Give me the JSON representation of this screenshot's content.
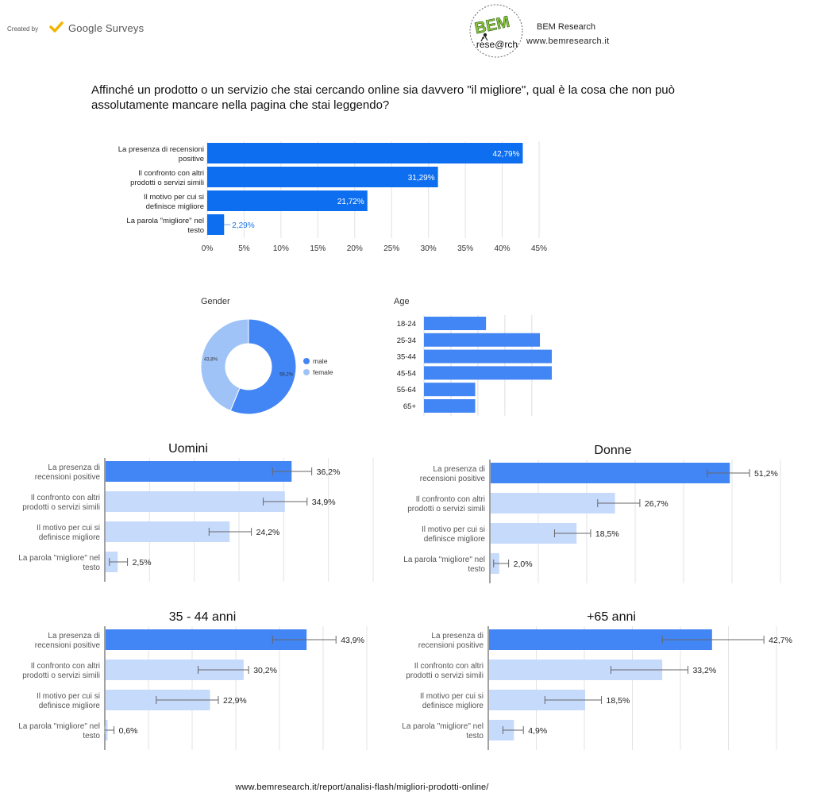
{
  "header": {
    "created_by": "Created by",
    "brand": "Google Surveys",
    "logo_text_top": "BEM",
    "logo_text_bottom": "rese@rch",
    "org_name": "BEM Research",
    "org_url": "www.bemresearch.it",
    "check_icon": "checkmark-icon",
    "accent_yellow": "#f4b400",
    "logo_green": "#8cc63f"
  },
  "question": "Affinché un prodotto o un servizio che stai cercando online sia davvero \"il migliore\", qual è la cosa che non può assolutamente mancare nella pagina che stai leggendo?",
  "footer": "www.bemresearch.it/report/analisi-flash/migliori-prodotti-online/",
  "chart_data": [
    {
      "type": "bar",
      "orientation": "horizontal",
      "categories": [
        [
          "La presenza di recensioni",
          "positive"
        ],
        [
          "Il confronto con altri",
          "prodotti o servizi simili"
        ],
        [
          "Il motivo per cui si",
          "definisce migliore"
        ],
        [
          "La parola \"migliore\" nel",
          "testo"
        ]
      ],
      "values": [
        42.79,
        31.29,
        21.72,
        2.29
      ],
      "value_labels": [
        "42,79%",
        "31,29%",
        "21,72%",
        "2,29%"
      ],
      "x_ticks": [
        "0%",
        "5%",
        "10%",
        "15%",
        "20%",
        "25%",
        "30%",
        "35%",
        "40%",
        "45%"
      ],
      "xlim": [
        0,
        45
      ],
      "grid": true,
      "color": "#0d6ff0"
    },
    {
      "type": "pie",
      "donut": true,
      "title": "Gender",
      "slices": [
        {
          "name": "male",
          "value": 56.2,
          "label": "56,2%",
          "color": "#4285f4"
        },
        {
          "name": "female",
          "value": 43.8,
          "label": "43,8%",
          "color": "#9fc3f7"
        }
      ],
      "legend": "right"
    },
    {
      "type": "bar",
      "orientation": "horizontal",
      "title": "Age",
      "categories": [
        "18-24",
        "25-34",
        "35-44",
        "45-54",
        "55-64",
        "65+"
      ],
      "values": [
        11.5,
        21.5,
        27.5,
        27.5,
        9.5,
        9.5
      ],
      "xlim": [
        0,
        29
      ],
      "grid": true,
      "color": "#4285f4"
    },
    {
      "type": "bar",
      "orientation": "horizontal",
      "title": "Uomini",
      "categories": [
        [
          "La presenza di",
          "recensioni positive"
        ],
        [
          "Il confronto con altri",
          "prodotti o servizi simili"
        ],
        [
          "Il motivo per cui si",
          "definisce migliore"
        ],
        [
          "La parola \"migliore\" nel",
          "testo"
        ]
      ],
      "values": [
        36.2,
        34.9,
        24.2,
        2.5
      ],
      "value_labels": [
        "36,2%",
        "34,9%",
        "24,2%",
        "2,5%"
      ],
      "error_low": [
        32.5,
        30.7,
        20.2,
        0.9
      ],
      "error_high": [
        40.1,
        39.2,
        28.4,
        4.4
      ],
      "xlim": [
        0,
        52
      ],
      "highlight_index": 0,
      "color_highlight": "#4285f4",
      "color_other": "#c6dafc"
    },
    {
      "type": "bar",
      "orientation": "horizontal",
      "title": "Donne",
      "categories": [
        [
          "La presenza di",
          "recensioni positive"
        ],
        [
          "Il confronto con altri",
          "prodotti o servizi simili"
        ],
        [
          "Il motivo per cui si",
          "definisce migliore"
        ],
        [
          "La parola \"migliore\" nel",
          "testo"
        ]
      ],
      "values": [
        51.2,
        26.7,
        18.5,
        2.0
      ],
      "value_labels": [
        "51,2%",
        "26,7%",
        "18,5%",
        "2,0%"
      ],
      "error_low": [
        46.4,
        23.0,
        13.8,
        0.8
      ],
      "error_high": [
        55.4,
        32.0,
        21.5,
        4.0
      ],
      "xlim": [
        0,
        62
      ],
      "highlight_index": 0,
      "color_highlight": "#4285f4",
      "color_other": "#c6dafc"
    },
    {
      "type": "bar",
      "orientation": "horizontal",
      "title": "35 - 44 anni",
      "categories": [
        [
          "La presenza di",
          "recensioni positive"
        ],
        [
          "Il confronto con altri",
          "prodotti o servizi simili"
        ],
        [
          "Il motivo per cui si",
          "definisce migliore"
        ],
        [
          "La parola \"migliore\" nel",
          "testo"
        ]
      ],
      "values": [
        43.9,
        30.2,
        22.9,
        0.6
      ],
      "value_labels": [
        "43,9%",
        "30,2%",
        "22,9%",
        "0,6%"
      ],
      "error_low": [
        36.5,
        20.3,
        11.2,
        0.0
      ],
      "error_high": [
        50.3,
        31.3,
        24.7,
        2.0
      ],
      "xlim": [
        0,
        57
      ],
      "highlight_index": 0,
      "color_highlight": "#4285f4",
      "color_other": "#c6dafc"
    },
    {
      "type": "bar",
      "orientation": "horizontal",
      "title": "+65 anni",
      "categories": [
        [
          "La presenza di",
          "recensioni positive"
        ],
        [
          "Il confronto con altri",
          "prodotti o servizi simili"
        ],
        [
          "Il motivo per cui si",
          "definisce migliore"
        ],
        [
          "La parola \"migliore\" nel",
          "testo"
        ]
      ],
      "values": [
        42.7,
        33.2,
        18.5,
        4.9
      ],
      "value_labels": [
        "42,7%",
        "33,2%",
        "18,5%",
        "4,9%"
      ],
      "error_low": [
        33.2,
        23.4,
        10.8,
        2.8
      ],
      "error_high": [
        52.6,
        38.1,
        21.6,
        6.7
      ],
      "xlim": [
        0,
        55
      ],
      "highlight_index": 0,
      "color_highlight": "#4285f4",
      "color_other": "#c6dafc"
    }
  ]
}
